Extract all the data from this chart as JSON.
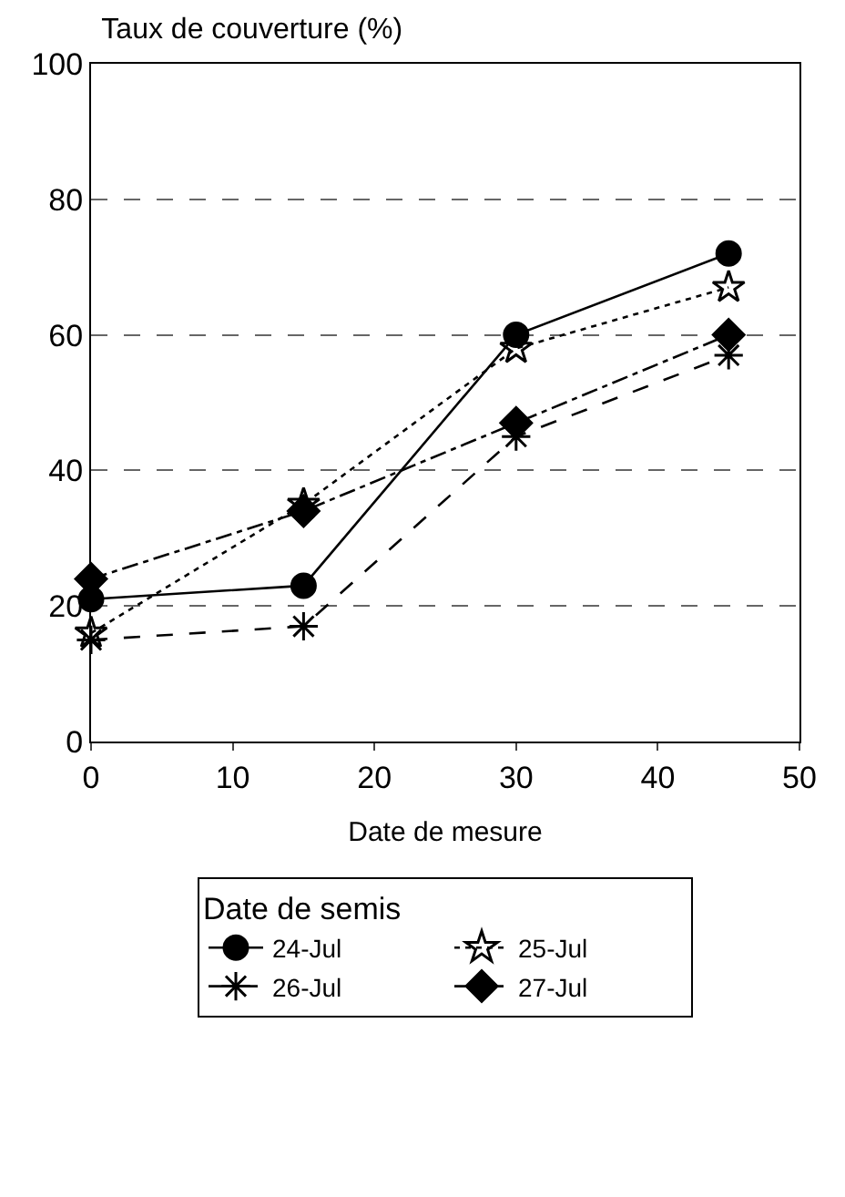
{
  "chart_data": {
    "type": "line",
    "title": "Taux de couverture (%)",
    "xlabel": "Date de mesure",
    "legend_title": "Date de semis",
    "legend": "bottom",
    "grid": "y",
    "x": [
      0,
      15,
      30,
      45
    ],
    "xlim": [
      0,
      50
    ],
    "xticks": [
      0,
      10,
      20,
      30,
      40,
      50
    ],
    "ylim": [
      0,
      100
    ],
    "yticks": [
      0,
      20,
      40,
      60,
      80,
      100
    ],
    "series": [
      {
        "name": "24-Jul",
        "color": "#000000",
        "marker": "circle",
        "line_style": "solid",
        "values": [
          21,
          23,
          60,
          72
        ]
      },
      {
        "name": "25-Jul",
        "color": "#000000",
        "marker": "star",
        "line_style": "dotted",
        "values": [
          16,
          35,
          58,
          67
        ]
      },
      {
        "name": "26-Jul",
        "color": "#000000",
        "marker": "cross",
        "line_style": "dashed",
        "values": [
          15,
          17,
          45,
          57
        ]
      },
      {
        "name": "27-Jul",
        "color": "#000000",
        "marker": "diamond",
        "line_style": "dashdot",
        "values": [
          24,
          34,
          47,
          60
        ]
      }
    ]
  }
}
